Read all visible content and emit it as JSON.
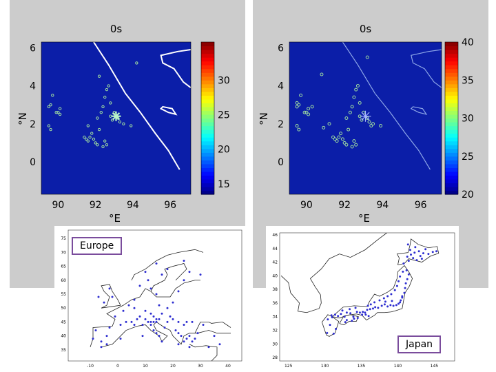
{
  "chart_data": [
    {
      "type": "scatter",
      "title": "0s",
      "xlabel": "°E",
      "ylabel": "°N",
      "xlim": [
        89.1,
        97.1
      ],
      "ylim": [
        -1.7,
        6.3
      ],
      "xticks": [
        "90",
        "92",
        "94",
        "96"
      ],
      "yticks": [
        "0",
        "2",
        "4",
        "6"
      ],
      "colorbar": {
        "range": [
          13.5,
          35.5
        ],
        "ticks": [
          "15",
          "20",
          "25",
          "30"
        ]
      },
      "epicenter": [
        93.1,
        2.4
      ],
      "series": [
        {
          "points": [
            [
              89.5,
              2.9
            ],
            [
              89.6,
              3.0
            ],
            [
              89.9,
              2.6
            ],
            [
              90.0,
              2.6
            ],
            [
              90.1,
              2.5
            ],
            [
              90.1,
              2.8
            ],
            [
              89.7,
              3.5
            ],
            [
              89.5,
              1.9
            ],
            [
              89.6,
              1.7
            ],
            [
              91.4,
              1.3
            ],
            [
              91.5,
              1.2
            ],
            [
              91.6,
              1.1
            ],
            [
              91.7,
              1.3
            ],
            [
              91.8,
              1.5
            ],
            [
              91.9,
              1.2
            ],
            [
              92.0,
              1.0
            ],
            [
              92.1,
              0.9
            ],
            [
              92.4,
              0.8
            ],
            [
              92.5,
              1.1
            ],
            [
              92.6,
              0.9
            ],
            [
              92.2,
              1.7
            ],
            [
              92.3,
              2.6
            ],
            [
              92.4,
              2.9
            ],
            [
              92.5,
              3.4
            ],
            [
              92.6,
              3.8
            ],
            [
              92.7,
              4.0
            ],
            [
              92.8,
              2.4
            ],
            [
              92.9,
              2.2
            ],
            [
              93.0,
              2.6
            ],
            [
              93.2,
              2.3
            ],
            [
              93.3,
              2.1
            ],
            [
              93.5,
              2.0
            ],
            [
              93.9,
              1.9
            ],
            [
              92.2,
              4.5
            ],
            [
              94.2,
              5.2
            ],
            [
              91.6,
              1.9
            ],
            [
              92.8,
              3.1
            ],
            [
              92.1,
              2.3
            ]
          ]
        }
      ]
    },
    {
      "type": "scatter",
      "title": "0s",
      "xlabel": "°E",
      "ylabel": "°N",
      "xlim": [
        89.1,
        97.1
      ],
      "ylim": [
        -1.7,
        6.3
      ],
      "xticks": [
        "90",
        "92",
        "94",
        "96"
      ],
      "yticks": [
        "0",
        "2",
        "4",
        "6"
      ],
      "colorbar": {
        "range": [
          20,
          40
        ],
        "ticks": [
          "20",
          "25",
          "30",
          "35",
          "40"
        ]
      },
      "epicenter": [
        93.1,
        2.4
      ],
      "series": [
        {
          "points": [
            [
              89.5,
              2.9
            ],
            [
              89.6,
              3.0
            ],
            [
              89.9,
              2.6
            ],
            [
              90.0,
              2.6
            ],
            [
              90.1,
              2.5
            ],
            [
              90.1,
              2.8
            ],
            [
              89.7,
              3.5
            ],
            [
              89.5,
              1.9
            ],
            [
              89.6,
              1.7
            ],
            [
              91.4,
              1.3
            ],
            [
              91.5,
              1.2
            ],
            [
              91.6,
              1.1
            ],
            [
              91.7,
              1.3
            ],
            [
              91.8,
              1.5
            ],
            [
              91.9,
              1.2
            ],
            [
              92.0,
              1.0
            ],
            [
              92.1,
              0.9
            ],
            [
              92.4,
              0.8
            ],
            [
              92.5,
              1.1
            ],
            [
              92.6,
              0.9
            ],
            [
              92.2,
              1.7
            ],
            [
              92.3,
              2.6
            ],
            [
              92.4,
              2.9
            ],
            [
              92.5,
              3.4
            ],
            [
              92.6,
              3.8
            ],
            [
              92.7,
              4.0
            ],
            [
              92.8,
              2.4
            ],
            [
              92.9,
              2.2
            ],
            [
              93.0,
              2.6
            ],
            [
              93.2,
              2.3
            ],
            [
              93.3,
              2.1
            ],
            [
              93.5,
              2.0
            ],
            [
              93.9,
              1.9
            ],
            [
              90.8,
              4.6
            ],
            [
              93.2,
              5.5
            ],
            [
              90.9,
              1.8
            ],
            [
              92.8,
              3.1
            ],
            [
              92.1,
              2.3
            ],
            [
              93.4,
              1.9
            ],
            [
              91.2,
              2.0
            ],
            [
              89.5,
              3.1
            ],
            [
              90.3,
              2.9
            ]
          ]
        }
      ]
    },
    {
      "type": "scatter",
      "xlim": [
        -18,
        45
      ],
      "ylim": [
        31,
        78
      ],
      "xticks": [
        "-10",
        "0",
        "10",
        "20",
        "30",
        "40"
      ],
      "yticks": [
        "35",
        "40",
        "45",
        "50",
        "55",
        "60",
        "65",
        "70",
        "75"
      ],
      "series": [
        {
          "points": [
            [
              -9,
              39
            ],
            [
              -8,
              42
            ],
            [
              -6,
              38
            ],
            [
              -4,
              40
            ],
            [
              -3,
              43
            ],
            [
              -1,
              47
            ],
            [
              1,
              44
            ],
            [
              2,
              49
            ],
            [
              3,
              45
            ],
            [
              5,
              45
            ],
            [
              6,
              50
            ],
            [
              7,
              46
            ],
            [
              8,
              47
            ],
            [
              9,
              44
            ],
            [
              10,
              46
            ],
            [
              11,
              45
            ],
            [
              12,
              44
            ],
            [
              13,
              42
            ],
            [
              14,
              41
            ],
            [
              15,
              40
            ],
            [
              16,
              38
            ],
            [
              14,
              46
            ],
            [
              13,
              47
            ],
            [
              12,
              48
            ],
            [
              10,
              49
            ],
            [
              16,
              48
            ],
            [
              19,
              47
            ],
            [
              20,
              46
            ],
            [
              21,
              42
            ],
            [
              22,
              41
            ],
            [
              23,
              40
            ],
            [
              24,
              38
            ],
            [
              25,
              39
            ],
            [
              26,
              40
            ],
            [
              27,
              38
            ],
            [
              28,
              39
            ],
            [
              24,
              44
            ],
            [
              25,
              45
            ],
            [
              27,
              45
            ],
            [
              22,
              45
            ],
            [
              18,
              45
            ],
            [
              17,
              43
            ],
            [
              15,
              51
            ],
            [
              14,
              55
            ],
            [
              12,
              57
            ],
            [
              11,
              60
            ],
            [
              10,
              63
            ],
            [
              8,
              58
            ],
            [
              6,
              53
            ],
            [
              4,
              51
            ],
            [
              -2,
              54
            ],
            [
              -3,
              57
            ],
            [
              -5,
              52
            ],
            [
              -7,
              54
            ],
            [
              20,
              52
            ],
            [
              22,
              56
            ],
            [
              24,
              60
            ],
            [
              26,
              63
            ],
            [
              30,
              62
            ],
            [
              35,
              40
            ],
            [
              33,
              36
            ],
            [
              37,
              37
            ],
            [
              26,
              36
            ],
            [
              22,
              37
            ],
            [
              29,
              41
            ],
            [
              31,
              44
            ],
            [
              16,
              62
            ],
            [
              18,
              64
            ],
            [
              24,
              67
            ],
            [
              14,
              66
            ],
            [
              -6,
              36
            ],
            [
              -4,
              37
            ],
            [
              1,
              39
            ],
            [
              9,
              40
            ],
            [
              18,
              50
            ],
            [
              12,
              45
            ],
            [
              13,
              45
            ],
            [
              14,
              45
            ],
            [
              15,
              46
            ],
            [
              6,
              44
            ]
          ]
        }
      ]
    },
    {
      "type": "scatter",
      "xlim": [
        123.8,
        147.8
      ],
      "ylim": [
        27.5,
        46.3
      ],
      "xticks": [
        "125",
        "130",
        "135",
        "140",
        "145"
      ],
      "yticks": [
        "28",
        "30",
        "32",
        "34",
        "36",
        "38",
        "40",
        "42",
        "44",
        "46"
      ],
      "series": [
        {
          "points": [
            [
              130.4,
              33.6
            ],
            [
              130.7,
              32.8
            ],
            [
              131.0,
              33.9
            ],
            [
              131.5,
              32.2
            ],
            [
              130.3,
              31.6
            ],
            [
              131.2,
              31.5
            ],
            [
              130.9,
              34.2
            ],
            [
              131.8,
              34.1
            ],
            [
              132.2,
              34.4
            ],
            [
              132.7,
              34.0
            ],
            [
              133.0,
              34.6
            ],
            [
              133.5,
              34.5
            ],
            [
              133.9,
              34.0
            ],
            [
              134.4,
              34.7
            ],
            [
              134.8,
              34.6
            ],
            [
              135.2,
              34.7
            ],
            [
              135.5,
              34.6
            ],
            [
              135.8,
              35.0
            ],
            [
              136.2,
              35.1
            ],
            [
              136.6,
              35.2
            ],
            [
              136.9,
              35.4
            ],
            [
              137.3,
              35.3
            ],
            [
              137.8,
              35.6
            ],
            [
              138.2,
              35.8
            ],
            [
              138.6,
              35.5
            ],
            [
              139.0,
              35.7
            ],
            [
              139.4,
              35.6
            ],
            [
              139.8,
              35.7
            ],
            [
              140.1,
              35.9
            ],
            [
              140.4,
              36.4
            ],
            [
              140.6,
              37.0
            ],
            [
              140.9,
              37.5
            ],
            [
              141.0,
              38.2
            ],
            [
              141.1,
              38.9
            ],
            [
              141.3,
              39.5
            ],
            [
              141.5,
              40.2
            ],
            [
              141.2,
              40.8
            ],
            [
              140.7,
              40.6
            ],
            [
              140.3,
              39.9
            ],
            [
              140.1,
              39.2
            ],
            [
              139.9,
              38.5
            ],
            [
              139.6,
              37.9
            ],
            [
              139.1,
              37.3
            ],
            [
              138.6,
              37.0
            ],
            [
              138.1,
              36.7
            ],
            [
              137.5,
              36.4
            ],
            [
              136.8,
              36.1
            ],
            [
              136.3,
              35.8
            ],
            [
              135.9,
              35.6
            ],
            [
              134.2,
              35.3
            ],
            [
              133.4,
              35.1
            ],
            [
              132.4,
              34.9
            ],
            [
              131.4,
              34.3
            ],
            [
              133.0,
              33.5
            ],
            [
              134.0,
              33.7
            ],
            [
              132.8,
              33.2
            ],
            [
              133.7,
              33.4
            ],
            [
              134.5,
              33.8
            ],
            [
              141.3,
              42.8
            ],
            [
              141.8,
              43.1
            ],
            [
              142.3,
              43.4
            ],
            [
              142.9,
              43.6
            ],
            [
              143.5,
              43.3
            ],
            [
              144.2,
              43.2
            ],
            [
              144.8,
              43.5
            ],
            [
              145.3,
              43.6
            ],
            [
              140.8,
              41.8
            ],
            [
              141.5,
              42.2
            ],
            [
              142.1,
              42.6
            ],
            [
              143.1,
              42.9
            ],
            [
              143.8,
              43.9
            ],
            [
              141.4,
              44.6
            ],
            [
              142.4,
              44.2
            ],
            [
              141.7,
              43.8
            ],
            [
              142.6,
              42.3
            ],
            [
              143.3,
              42.5
            ],
            [
              140.6,
              36.8
            ],
            [
              140.3,
              36.1
            ],
            [
              139.2,
              36.3
            ],
            [
              138.3,
              36.2
            ],
            [
              135.6,
              34.3
            ],
            [
              136.0,
              34.1
            ],
            [
              135.1,
              34.3
            ]
          ]
        }
      ]
    }
  ],
  "labels": {
    "europe": "Europe",
    "japan": "Japan"
  },
  "colors": {
    "background": "#cccccc",
    "ocean": "#0b1ea8",
    "stations": "#9fdc9f",
    "coast_left": "#ffffff",
    "coast_right": "#8ea7e8",
    "epicenter": "#b9f5c8",
    "region_border": "#7a4c9c",
    "dots": "#2f2fd0"
  }
}
